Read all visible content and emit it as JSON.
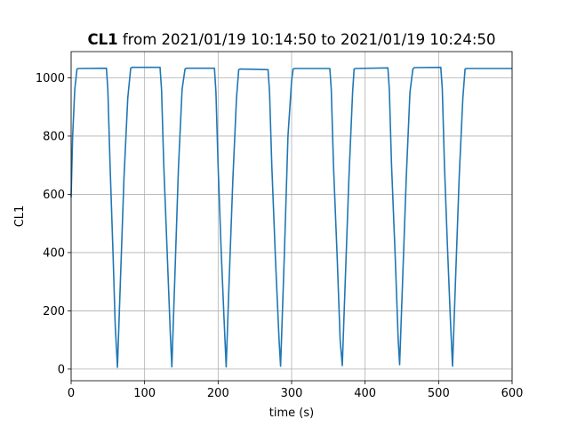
{
  "chart_data": {
    "type": "line",
    "title_bold": "CL1",
    "title_rest": " from 2021/01/19 10:14:50 to 2021/01/19 10:24:50",
    "xlabel": "time (s)",
    "ylabel": "CL1",
    "xlim": [
      0,
      600
    ],
    "ylim": [
      -40,
      1090
    ],
    "xticks": [
      0,
      100,
      200,
      300,
      400,
      500,
      600
    ],
    "yticks": [
      0,
      200,
      400,
      600,
      800,
      1000
    ],
    "grid": true,
    "color": "#1f77b4",
    "series": [
      {
        "x": [
          0,
          2,
          5,
          8,
          10,
          48,
          50,
          53,
          57,
          60,
          63,
          67,
          72,
          77,
          81,
          83,
          121,
          123,
          126,
          131,
          135,
          137,
          141,
          146,
          151,
          155,
          157,
          195,
          197,
          200,
          204,
          208,
          211,
          215,
          220,
          225,
          228,
          230,
          268,
          270,
          273,
          278,
          283,
          285,
          290,
          295,
          300,
          302,
          304,
          352,
          354,
          357,
          362,
          366,
          369,
          373,
          378,
          383,
          385,
          387,
          431,
          433,
          436,
          441,
          445,
          447,
          451,
          456,
          461,
          465,
          467,
          503,
          505,
          508,
          512,
          516,
          519,
          523,
          528,
          533,
          536,
          538,
          600
        ],
        "y": [
          590,
          800,
          960,
          1030,
          1032,
          1033,
          960,
          700,
          400,
          150,
          6,
          300,
          660,
          930,
          1033,
          1036,
          1036,
          960,
          700,
          380,
          120,
          8,
          310,
          690,
          960,
          1030,
          1033,
          1033,
          950,
          700,
          420,
          180,
          8,
          300,
          650,
          930,
          1028,
          1030,
          1028,
          950,
          700,
          380,
          100,
          10,
          380,
          800,
          990,
          1030,
          1032,
          1032,
          960,
          700,
          380,
          100,
          12,
          300,
          660,
          950,
          1030,
          1032,
          1034,
          960,
          700,
          380,
          100,
          15,
          300,
          660,
          950,
          1030,
          1035,
          1036,
          960,
          700,
          420,
          170,
          10,
          300,
          660,
          930,
          1030,
          1032,
          1032
        ]
      }
    ]
  }
}
